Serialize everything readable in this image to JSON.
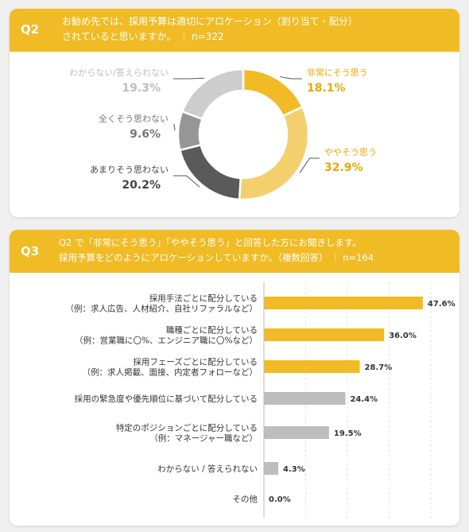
{
  "q2": {
    "num": "Q2",
    "text_line1": "お勧め先では、採用予算は適切にアロケーション（割り当て・配分）",
    "text_line2": "されていると思いますか。",
    "n": "n=322"
  },
  "q3": {
    "num": "Q3",
    "text_line1": "Q2 で「非常にそう思う」「ややそう思う」と回答した方にお聞きします。",
    "text_line2": "採用予算をどのようにアロケーションしていますか。（複数回答）",
    "n": "n=164"
  },
  "chart_data": [
    {
      "type": "pie",
      "donut": true,
      "categories": [
        "非常にそう思う",
        "ややそう思う",
        "あまりそう思わない",
        "全くそう思わない",
        "わからない/答えられない"
      ],
      "values": [
        18.1,
        32.9,
        20.2,
        9.6,
        19.3
      ],
      "value_labels": [
        "18.1%",
        "32.9%",
        "20.2%",
        "9.6%",
        "19.3%"
      ],
      "colors": [
        "#f0bb25",
        "#f3cf6e",
        "#5a5a5a",
        "#969696",
        "#cdcdcd"
      ],
      "label_colors": [
        "#e8a800",
        "#e8a800",
        "#444444",
        "#777777",
        "#bdbdbd"
      ]
    },
    {
      "type": "bar",
      "orientation": "horizontal",
      "categories": [
        [
          "採用手法ごとに配分している",
          "（例：求人広告、人材紹介、自社リファラルなど）"
        ],
        [
          "職種ごとに配分している",
          "（例：営業職に〇%、エンジニア職に〇%など）"
        ],
        [
          "採用フェーズごとに配分している",
          "（例：求人掲載、面接、内定者フォローなど）"
        ],
        [
          "採用の緊急度や優先順位に基づいて配分している"
        ],
        [
          "特定のポジションごとに配分している",
          "（例：マネージャー職など）"
        ],
        [
          "わからない / 答えられない"
        ],
        [
          "その他"
        ]
      ],
      "values": [
        47.6,
        36.0,
        28.7,
        24.4,
        19.5,
        4.3,
        0.0
      ],
      "value_labels": [
        "47.6%",
        "36.0%",
        "28.7%",
        "24.4%",
        "19.5%",
        "4.3%",
        "0.0%"
      ],
      "colors": [
        "#f0bb25",
        "#f0bb25",
        "#f0bb25",
        "#bdbdbd",
        "#bdbdbd",
        "#bdbdbd",
        "#bdbdbd"
      ],
      "xlim": [
        0,
        50
      ],
      "grid": true
    }
  ]
}
